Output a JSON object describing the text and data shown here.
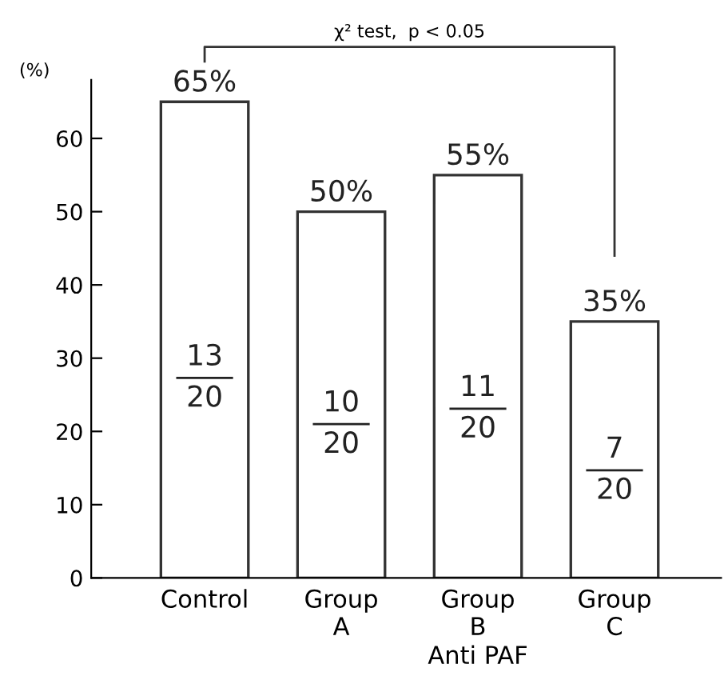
{
  "chart_data": {
    "type": "bar",
    "categories": [
      "Control",
      "Group\nA",
      "Group\nB",
      "Group\nC"
    ],
    "values": [
      65,
      50,
      55,
      35
    ],
    "value_labels": [
      "65%",
      "50%",
      "55%",
      "35%"
    ],
    "color": "#ffffff",
    "ylabel": "(%)",
    "xlabel": "Anti PAF",
    "ylim": [
      0,
      68
    ],
    "yticks": [
      0,
      10,
      20,
      30,
      40,
      50,
      60
    ],
    "grid": false,
    "annotations": [
      "13",
      "20",
      "10",
      "20",
      "11",
      "20",
      "7",
      "20",
      "χ² test,  p < 0.05"
    ]
  }
}
